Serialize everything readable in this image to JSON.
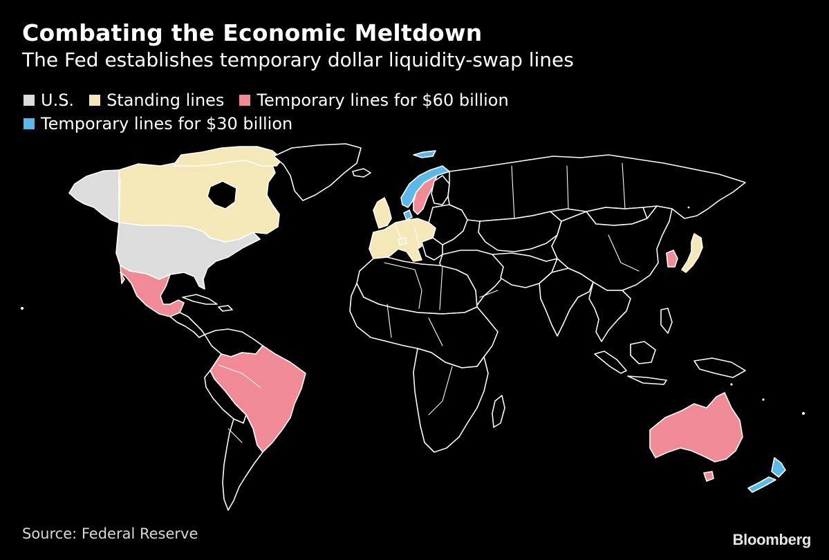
{
  "header": {
    "title": "Combating the Economic Meltdown",
    "subtitle": "The Fed establishes temporary dollar liquidity-swap lines"
  },
  "legend": {
    "items": [
      {
        "label": "U.S.",
        "color": "#dcdcdc"
      },
      {
        "label": "Standing lines",
        "color": "#f5e8b8"
      },
      {
        "label": "Temporary lines for $60 billion",
        "color": "#f08a96"
      },
      {
        "label": "Temporary lines for $30 billion",
        "color": "#5bb8e8"
      }
    ]
  },
  "map": {
    "background_color": "#000000",
    "border_color": "#ffffff",
    "regions": {
      "us": {
        "category": "U.S.",
        "countries": [
          "United States"
        ]
      },
      "standing": {
        "category": "Standing lines",
        "countries": [
          "Canada",
          "Euro area",
          "United Kingdom",
          "Switzerland",
          "Japan"
        ]
      },
      "sixty": {
        "category": "Temporary lines for $60 billion",
        "countries": [
          "Mexico",
          "Brazil",
          "Australia",
          "South Korea",
          "Sweden"
        ]
      },
      "thirty": {
        "category": "Temporary lines for $30 billion",
        "countries": [
          "Norway",
          "Denmark",
          "New Zealand"
        ]
      }
    }
  },
  "footer": {
    "source": "Source: Federal Reserve",
    "brand": "Bloomberg"
  }
}
